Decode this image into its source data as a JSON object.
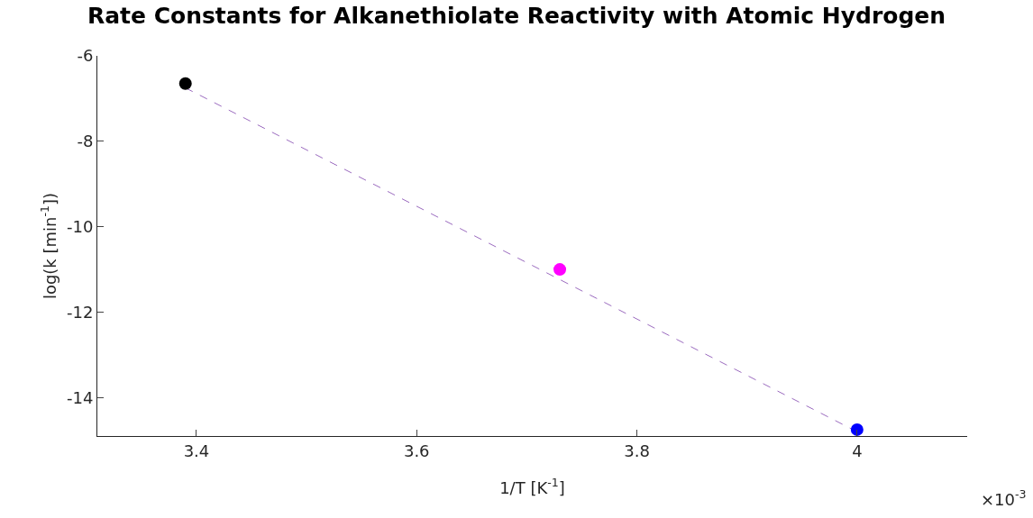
{
  "chart_data": {
    "type": "scatter",
    "title": "Rate Constants for Alkanethiolate Reactivity with Atomic Hydrogen",
    "xlabel": "1/T [K$^{-1}$]",
    "ylabel": "log(k [min$^{-1}$])",
    "annotations": [
      "×10$^{-3}$"
    ],
    "series": [
      {
        "type": "line",
        "x": [
          3.39,
          4.0
        ],
        "values": [
          -6.75,
          -14.8
        ],
        "color": "#9b6bbf",
        "line_style": "dashed",
        "marker": "none"
      },
      {
        "x": [
          3.39
        ],
        "values": [
          -6.65
        ],
        "color": "#000000",
        "marker": "circle"
      },
      {
        "x": [
          3.73
        ],
        "values": [
          -11.0
        ],
        "color": "#ff00ff",
        "marker": "circle"
      },
      {
        "x": [
          4.0
        ],
        "values": [
          -14.75
        ],
        "color": "#0000ff",
        "marker": "circle"
      }
    ],
    "xlim": [
      3.31,
      4.1
    ],
    "xticks": [
      3.4,
      3.6,
      3.8,
      {
        "value": 4.0,
        "label": "4"
      }
    ],
    "ylim": [
      -14.9,
      -6
    ],
    "yticks": [
      -6,
      -8,
      -10,
      -12,
      -14
    ],
    "grid": false
  }
}
